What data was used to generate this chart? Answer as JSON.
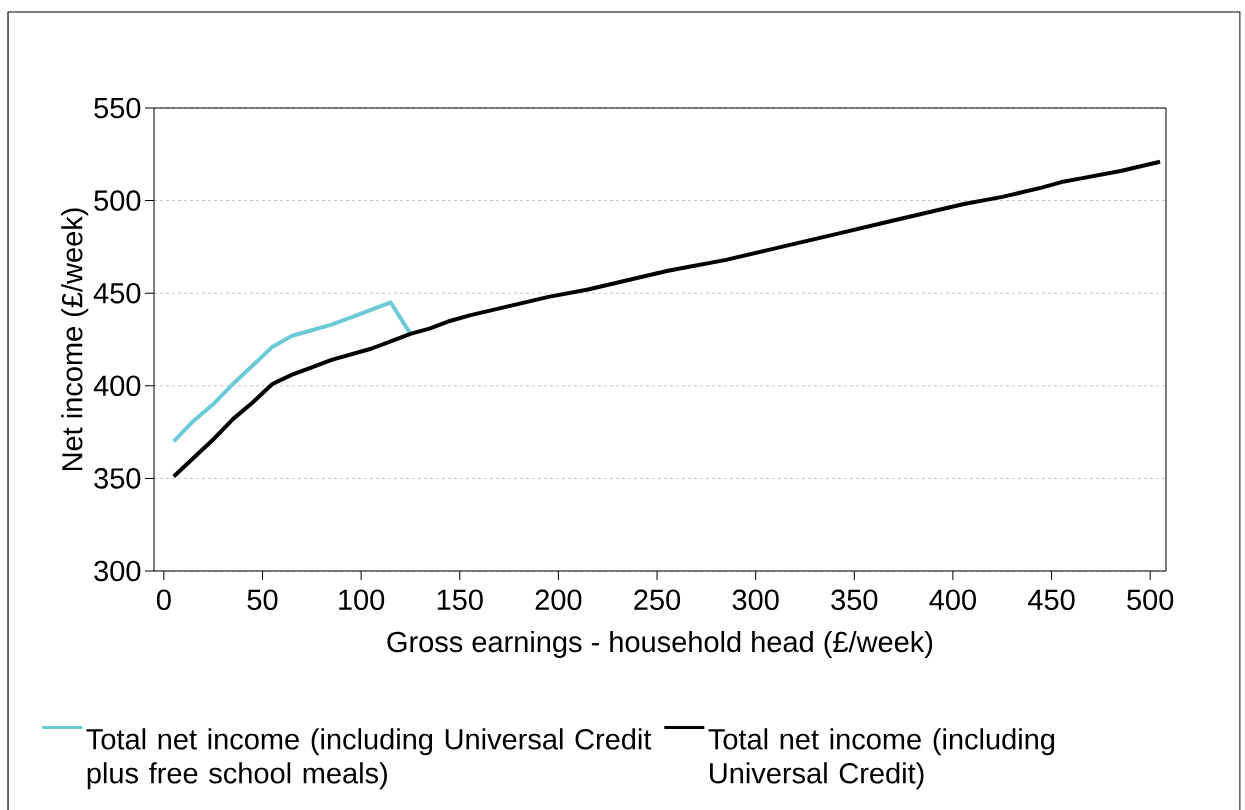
{
  "chart_data": {
    "type": "line",
    "xlabel": "Gross earnings - household head (£/week)",
    "ylabel": "Net income (£/week)",
    "xlim": [
      -5,
      508
    ],
    "ylim": [
      300,
      550
    ],
    "xticks": [
      0,
      50,
      100,
      150,
      200,
      250,
      300,
      350,
      400,
      450,
      500
    ],
    "yticks": [
      300,
      350,
      400,
      450,
      500,
      550
    ],
    "grid": "y",
    "legend": "bottom",
    "series": [
      {
        "name": "Total net income (including Universal Credit plus free school meals)",
        "color": "#6ccad6",
        "x": [
          5,
          15,
          25,
          35,
          45,
          55,
          65,
          75,
          85,
          95,
          105,
          115,
          125
        ],
        "values": [
          370,
          381,
          390,
          401,
          411,
          421,
          427,
          430,
          433,
          437,
          441,
          445,
          428
        ]
      },
      {
        "name": "Total net income (including Universal Credit)",
        "color": "#000000",
        "x": [
          5,
          15,
          25,
          35,
          45,
          55,
          65,
          75,
          85,
          95,
          105,
          115,
          125,
          135,
          145,
          155,
          175,
          195,
          215,
          235,
          255,
          265,
          285,
          305,
          325,
          345,
          365,
          385,
          405,
          425,
          445,
          455,
          465,
          485,
          505
        ],
        "values": [
          351,
          361,
          371,
          382,
          391,
          401,
          406,
          410,
          414,
          417,
          420,
          424,
          428,
          431,
          435,
          438,
          443,
          448,
          452,
          457,
          462,
          464,
          468,
          473,
          478,
          483,
          488,
          493,
          498,
          502,
          507,
          510,
          512,
          516,
          521
        ]
      }
    ]
  }
}
